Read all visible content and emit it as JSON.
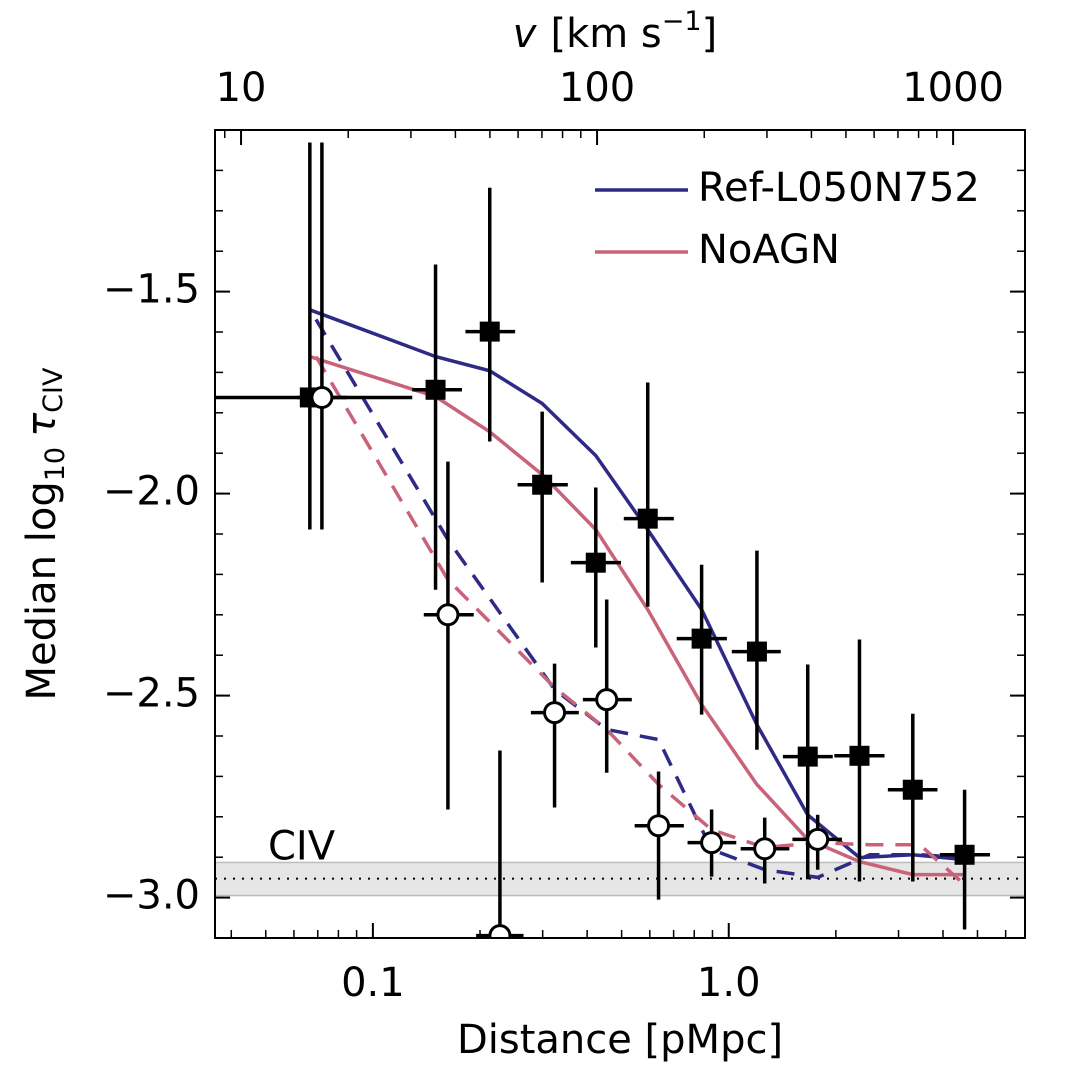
{
  "chart_data": {
    "type": "scatter",
    "xlabel": "Distance [pMpc]",
    "xscale": "log",
    "xlim": [
      0.036,
      6.8
    ],
    "xticks": [
      0.1,
      {
        "value": 1,
        "label": "1.0"
      }
    ],
    "x2label": [
      "v",
      "[km s",
      "−1",
      "]"
    ],
    "x2lim": [
      8.45,
      1592
    ],
    "x2ticks": [
      10,
      100,
      1000
    ],
    "ylabel": [
      "Median log",
      "10",
      "τ",
      "CIV"
    ],
    "ylim": [
      -3.1,
      -1.1
    ],
    "yticks": [
      {
        "value": -3.0,
        "label": "−3.0"
      },
      {
        "value": -2.5,
        "label": "−2.5"
      },
      {
        "value": -2.0,
        "label": "−2.0"
      },
      {
        "value": -1.5,
        "label": "−1.5"
      }
    ],
    "legend": "upper right",
    "band": {
      "label": "CIV",
      "y_lo": -2.995,
      "y_hi": -2.913,
      "y_mid": -2.953
    },
    "points": [
      {
        "marker": "square",
        "color": "#000000",
        "x": [
          0.0665,
          0.15,
          0.213,
          0.299,
          0.423,
          0.592,
          0.839,
          1.2,
          1.667,
          2.33,
          3.29,
          4.6
        ],
        "values": [
          -1.762,
          -1.743,
          -1.599,
          -1.978,
          -2.171,
          -2.062,
          -2.359,
          -2.391,
          -2.651,
          -2.649,
          -2.733,
          -2.894
        ],
        "x_lo": [
          0.036,
          0.129,
          0.182,
          0.255,
          0.36,
          0.507,
          0.714,
          1.02,
          1.42,
          1.98,
          2.8,
          3.92
        ],
        "x_hi": [
          0.129,
          0.178,
          0.251,
          0.353,
          0.498,
          0.701,
          0.988,
          1.4,
          1.96,
          2.74,
          3.86,
          5.42
        ],
        "y_lo": [
          -2.089,
          -2.238,
          -1.871,
          -2.22,
          -2.381,
          -2.28,
          -2.547,
          -2.634,
          -2.955,
          -2.96,
          -2.96,
          -3.079
        ],
        "y_hi": [
          -1.131,
          -1.433,
          -1.243,
          -1.797,
          -1.985,
          -1.725,
          -2.176,
          -2.141,
          -2.423,
          -2.361,
          -2.545,
          -2.733
        ]
      },
      {
        "marker": "circle",
        "color": "#000000",
        "x": [
          0.0719,
          0.1625,
          0.2275,
          0.324,
          0.454,
          0.635,
          0.895,
          1.262,
          1.778
        ],
        "values": [
          -1.762,
          -2.3,
          -3.094,
          -2.542,
          -2.51,
          -2.822,
          -2.864,
          -2.879,
          -2.856
        ],
        "x_lo": [
          0.0612,
          0.139,
          0.195,
          0.278,
          0.389,
          0.544,
          0.766,
          1.08,
          1.51
        ],
        "x_hi": [
          0.0845,
          0.192,
          0.265,
          0.379,
          0.534,
          0.748,
          1.05,
          1.48,
          2.08
        ],
        "y_lo": [
          -2.089,
          -2.782,
          -3.15,
          -2.777,
          -2.691,
          -3.005,
          -2.948,
          -2.965,
          -2.931
        ],
        "y_hi": [
          -1.131,
          -1.921,
          -2.636,
          -2.421,
          -2.262,
          -2.688,
          -2.782,
          -2.802,
          -2.795
        ]
      }
    ],
    "series": [
      {
        "name": "Ref-L050N752",
        "color": "#2e2a86",
        "style": "solid",
        "x": [
          0.0665,
          0.15,
          0.213,
          0.299,
          0.423,
          0.592,
          0.839,
          1.2,
          1.667,
          2.33,
          3.29,
          4.6
        ],
        "values": [
          -1.545,
          -1.661,
          -1.696,
          -1.777,
          -1.906,
          -2.089,
          -2.287,
          -2.572,
          -2.795,
          -2.901,
          -2.894,
          -2.906
        ]
      },
      {
        "name": "NoAGN",
        "color": "#c9637a",
        "style": "solid",
        "x": [
          0.0665,
          0.15,
          0.213,
          0.299,
          0.423,
          0.592,
          0.839,
          1.2,
          1.667,
          2.33,
          3.29,
          4.6
        ],
        "values": [
          -1.661,
          -1.76,
          -1.847,
          -1.953,
          -2.089,
          -2.287,
          -2.522,
          -2.72,
          -2.856,
          -2.911,
          -2.943,
          -2.943
        ]
      },
      {
        "color": "#2e2a86",
        "style": "dashed",
        "x": [
          0.0692,
          0.1625,
          0.324,
          0.454,
          0.635,
          0.895,
          1.262,
          1.778,
          2.49,
          3.44,
          4.6
        ],
        "values": [
          -1.569,
          -2.114,
          -2.485,
          -2.584,
          -2.609,
          -2.881,
          -2.931,
          -2.95,
          -2.894,
          -2.894,
          -2.901
        ]
      },
      {
        "color": "#c9637a",
        "style": "dashed",
        "x": [
          0.0692,
          0.1625,
          0.324,
          0.454,
          0.635,
          0.895,
          1.262,
          1.778,
          2.49,
          3.44,
          4.6
        ],
        "values": [
          -1.661,
          -2.213,
          -2.48,
          -2.584,
          -2.72,
          -2.832,
          -2.876,
          -2.864,
          -2.869,
          -2.869,
          -2.968
        ]
      }
    ]
  }
}
